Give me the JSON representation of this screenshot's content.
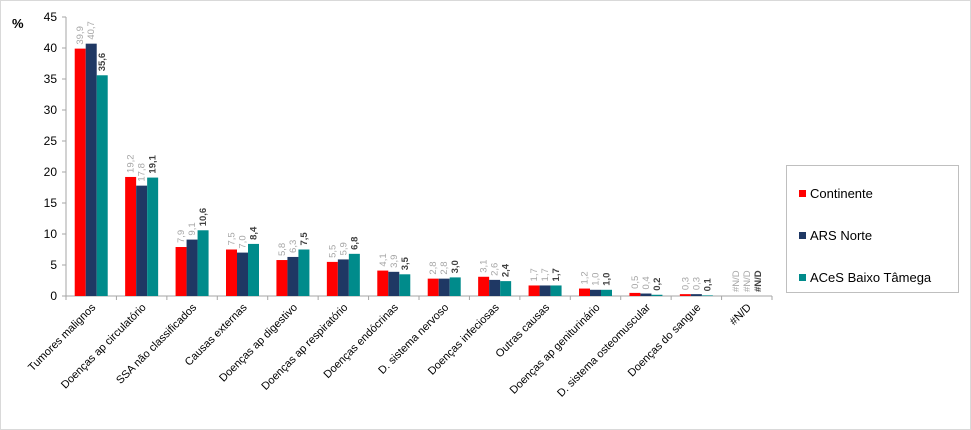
{
  "chart_data": {
    "type": "bar",
    "ylabel": "%",
    "ylim": [
      0,
      45
    ],
    "yticks": [
      0,
      5,
      10,
      15,
      20,
      25,
      30,
      35,
      40,
      45
    ],
    "grid": false,
    "legend_position": "right",
    "categories": [
      "Tumores malignos",
      "Doenças ap circulatório",
      "SSA não classificados",
      "Causas externas",
      "Doenças ap digestivo",
      "Doenças ap respiratório",
      "Doenças endócrinas",
      "D. sistema nervoso",
      "Doenças infeciosas",
      "Outras causas",
      "Doenças ap geniturinário",
      "D. sistema osteomuscular",
      "Doenças do sangue",
      "#N/D"
    ],
    "series": [
      {
        "name": "Continente",
        "color": "#ff0000",
        "values": [
          39.9,
          19.2,
          7.9,
          7.5,
          5.8,
          5.5,
          4.1,
          2.8,
          3.1,
          1.7,
          1.2,
          0.5,
          0.3,
          0
        ],
        "labels": [
          "39,9",
          "19,2",
          "7,9",
          "7,5",
          "5,8",
          "5,5",
          "4,1",
          "2,8",
          "3,1",
          "1,7",
          "1,2",
          "0,5",
          "0,3",
          "#N/D"
        ]
      },
      {
        "name": "ARS Norte",
        "color": "#1f3864",
        "values": [
          40.7,
          17.8,
          9.1,
          7.0,
          6.3,
          5.9,
          3.9,
          2.8,
          2.6,
          1.7,
          1.0,
          0.4,
          0.3,
          0
        ],
        "labels": [
          "40,7",
          "17,8",
          "9,1",
          "7,0",
          "6,3",
          "5,9",
          "3,9",
          "2,8",
          "2,6",
          "1,7",
          "1,0",
          "0,4",
          "0,3",
          "#N/D"
        ]
      },
      {
        "name": "ACeS Baixo Tâmega",
        "color": "#008b8b",
        "values": [
          35.6,
          19.1,
          10.6,
          8.4,
          7.5,
          6.8,
          3.5,
          3.0,
          2.4,
          1.7,
          1.0,
          0.2,
          0.1,
          0
        ],
        "labels": [
          "35,6",
          "19,1",
          "10,6",
          "8,4",
          "7,5",
          "6,8",
          "3,5",
          "3,0",
          "2,4",
          "1,7",
          "1,0",
          "0,2",
          "0,1",
          "#N/D"
        ]
      }
    ]
  }
}
